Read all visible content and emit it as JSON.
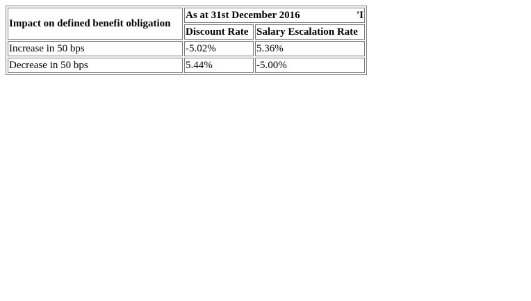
{
  "table": {
    "row_header": "Impact on defined benefit obligation",
    "period_header": "As at 31st December 2016",
    "period_trailing": "'I",
    "columns": [
      "Discount Rate",
      "Salary Escalation Rate"
    ],
    "rows": [
      {
        "label": "Increase in 50 bps",
        "discount_rate": "-5.02%",
        "salary_escalation_rate": "5.36%"
      },
      {
        "label": "Decrease in 50 bps",
        "discount_rate": "5.44%",
        "salary_escalation_rate": "-5.00%"
      }
    ]
  }
}
